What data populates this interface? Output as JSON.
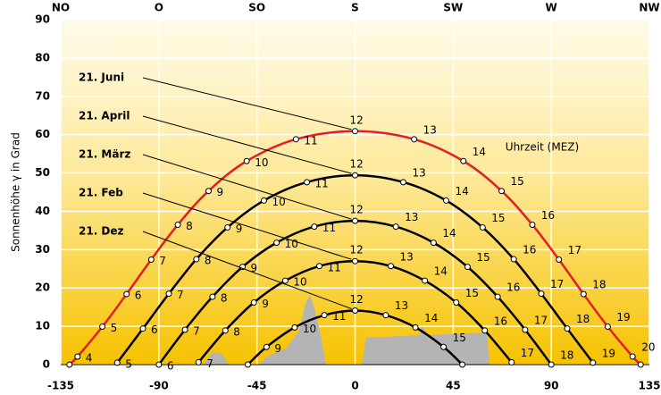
{
  "chart_data": {
    "type": "line",
    "ylabel": "Sonnenhöhe γ in Grad",
    "annotation": "Uhrzeit (MEZ)",
    "xlim": [
      -135,
      135
    ],
    "ylim": [
      0,
      90
    ],
    "xticks": [
      -135,
      -90,
      -45,
      0,
      45,
      90,
      135
    ],
    "yticks": [
      0,
      10,
      20,
      30,
      40,
      50,
      60,
      70,
      80,
      90
    ],
    "x2ticks": [
      {
        "value": -135,
        "label": "NO"
      },
      {
        "value": -90,
        "label": "O"
      },
      {
        "value": -45,
        "label": "SO"
      },
      {
        "value": 0,
        "label": "S"
      },
      {
        "value": 45,
        "label": "SW"
      },
      {
        "value": 90,
        "label": "W"
      },
      {
        "value": 135,
        "label": "NW"
      }
    ],
    "grid": true,
    "series": [
      {
        "name": "21. Juni",
        "color": "#e31e24",
        "x": [
          -131,
          -127.3,
          -115.9,
          -104.8,
          -93.5,
          -81.3,
          -67.2,
          -49.7,
          -27.1,
          0,
          27.1,
          49.7,
          67.2,
          81.3,
          93.5,
          104.8,
          115.9,
          127.3,
          131
        ],
        "values": [
          0,
          2.1,
          9.9,
          18.4,
          27.4,
          36.5,
          45.3,
          53.1,
          58.8,
          60.9,
          58.8,
          53.1,
          45.3,
          36.5,
          27.4,
          18.4,
          9.9,
          2.1,
          0
        ],
        "point_labels": [
          null,
          4,
          5,
          6,
          7,
          8,
          9,
          10,
          11,
          12,
          13,
          14,
          15,
          16,
          17,
          18,
          19,
          20,
          null
        ]
      },
      {
        "name": "21. April",
        "color": "#000000",
        "x": [
          -109.1,
          -97.3,
          -85.4,
          -72.8,
          -58.5,
          -41.8,
          -22.1,
          0,
          22.1,
          41.8,
          58.5,
          72.8,
          85.4,
          97.3,
          109.1
        ],
        "values": [
          0.5,
          9.4,
          18.5,
          27.5,
          35.8,
          42.8,
          47.6,
          49.4,
          47.6,
          42.8,
          35.8,
          27.5,
          18.5,
          9.4,
          0.5
        ],
        "point_labels": [
          5,
          6,
          7,
          8,
          9,
          10,
          11,
          12,
          13,
          14,
          15,
          16,
          17,
          18,
          19
        ]
      },
      {
        "name": "21. März",
        "color": "#000000",
        "x": [
          -90,
          -78,
          -65.4,
          -51.6,
          -36,
          -18.7,
          0,
          18.7,
          36,
          51.6,
          65.4,
          78,
          90
        ],
        "values": [
          0,
          9.1,
          17.7,
          25.5,
          31.8,
          36,
          37.5,
          36,
          31.8,
          25.5,
          17.7,
          9.1,
          0
        ],
        "point_labels": [
          6,
          7,
          8,
          9,
          10,
          11,
          12,
          13,
          14,
          15,
          16,
          17,
          18
        ]
      },
      {
        "name": "21. Feb",
        "color": "#000000",
        "x": [
          -71.8,
          -59.5,
          -46.4,
          -32,
          -16.4,
          0,
          16.4,
          32,
          46.4,
          59.5,
          71.8
        ],
        "values": [
          0.6,
          8.9,
          16.2,
          21.9,
          25.7,
          27,
          25.7,
          21.9,
          16.2,
          8.9,
          0.6
        ],
        "point_labels": [
          7,
          8,
          9,
          10,
          11,
          12,
          13,
          14,
          15,
          16,
          17
        ]
      },
      {
        "name": "21. Dez",
        "color": "#000000",
        "x": [
          -49.2,
          -40.6,
          -27.7,
          -14.1,
          0,
          14.1,
          27.7,
          40.6,
          49.2
        ],
        "values": [
          0,
          4.6,
          9.7,
          12.9,
          14.1,
          12.9,
          9.7,
          4.6,
          0
        ],
        "point_labels": [
          null,
          9,
          10,
          11,
          12,
          13,
          14,
          15,
          null
        ]
      }
    ]
  }
}
